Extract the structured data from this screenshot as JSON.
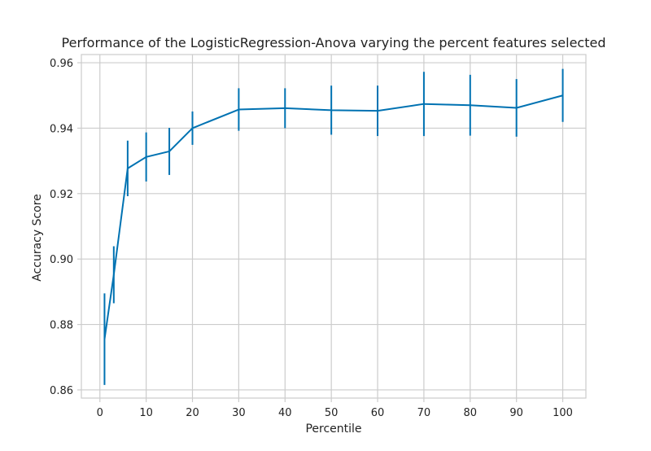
{
  "chart_data": {
    "type": "line",
    "title": "Performance of the LogisticRegression-Anova varying the percent features selected",
    "xlabel": "Percentile",
    "ylabel": "Accuracy Score",
    "x": [
      1,
      3,
      6,
      10,
      15,
      20,
      30,
      40,
      50,
      60,
      70,
      80,
      90,
      100
    ],
    "series": [
      {
        "values": [
          0.8755,
          0.8952,
          0.9277,
          0.9312,
          0.9329,
          0.94,
          0.9457,
          0.9461,
          0.9455,
          0.9453,
          0.9474,
          0.947,
          0.9462,
          0.95
        ],
        "error": [
          0.014,
          0.0087,
          0.0085,
          0.0075,
          0.0072,
          0.0051,
          0.0065,
          0.0061,
          0.0075,
          0.0077,
          0.0098,
          0.0093,
          0.0088,
          0.0081
        ],
        "color": "#0072b2"
      }
    ],
    "xlim": [
      -4,
      105
    ],
    "ylim": [
      0.8575,
      0.9625
    ],
    "xticks": [
      0,
      10,
      20,
      30,
      40,
      50,
      60,
      70,
      80,
      90,
      100
    ],
    "yticks": [
      0.86,
      0.88,
      0.9,
      0.92,
      0.94,
      0.96
    ],
    "ytick_labels": [
      "0.86",
      "0.88",
      "0.90",
      "0.92",
      "0.94",
      "0.96"
    ],
    "grid": true,
    "grid_color": "#cccccc",
    "axis_color": "#cccccc"
  }
}
